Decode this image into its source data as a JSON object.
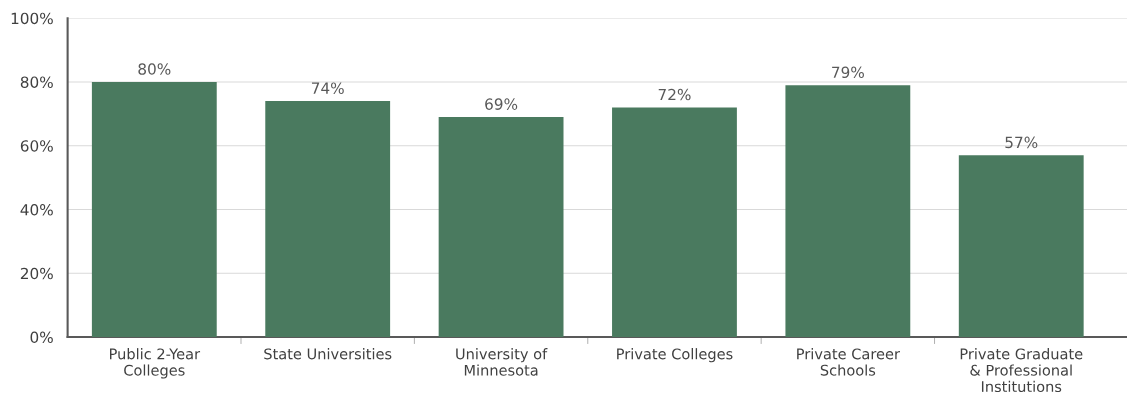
{
  "chart_data": {
    "type": "bar",
    "categories": [
      "Public 2-Year\nColleges",
      "State Universities",
      "University of\nMinnesota",
      "Private Colleges",
      "Private Career\nSchools",
      "Private Graduate\n& Professional\nInstitutions"
    ],
    "values": [
      80,
      74,
      69,
      72,
      79,
      57
    ],
    "value_labels": [
      "80%",
      "74%",
      "69%",
      "72%",
      "79%",
      "57%"
    ],
    "color": "#4a7a5f",
    "ylim": [
      0,
      100
    ],
    "yticks": [
      {
        "value": 0,
        "label": "0%"
      },
      {
        "value": 20,
        "label": "20%"
      },
      {
        "value": 40,
        "label": "40%"
      },
      {
        "value": 60,
        "label": "60%"
      },
      {
        "value": 80,
        "label": "80%"
      },
      {
        "value": 100,
        "label": "100%"
      }
    ],
    "grid": "y"
  }
}
